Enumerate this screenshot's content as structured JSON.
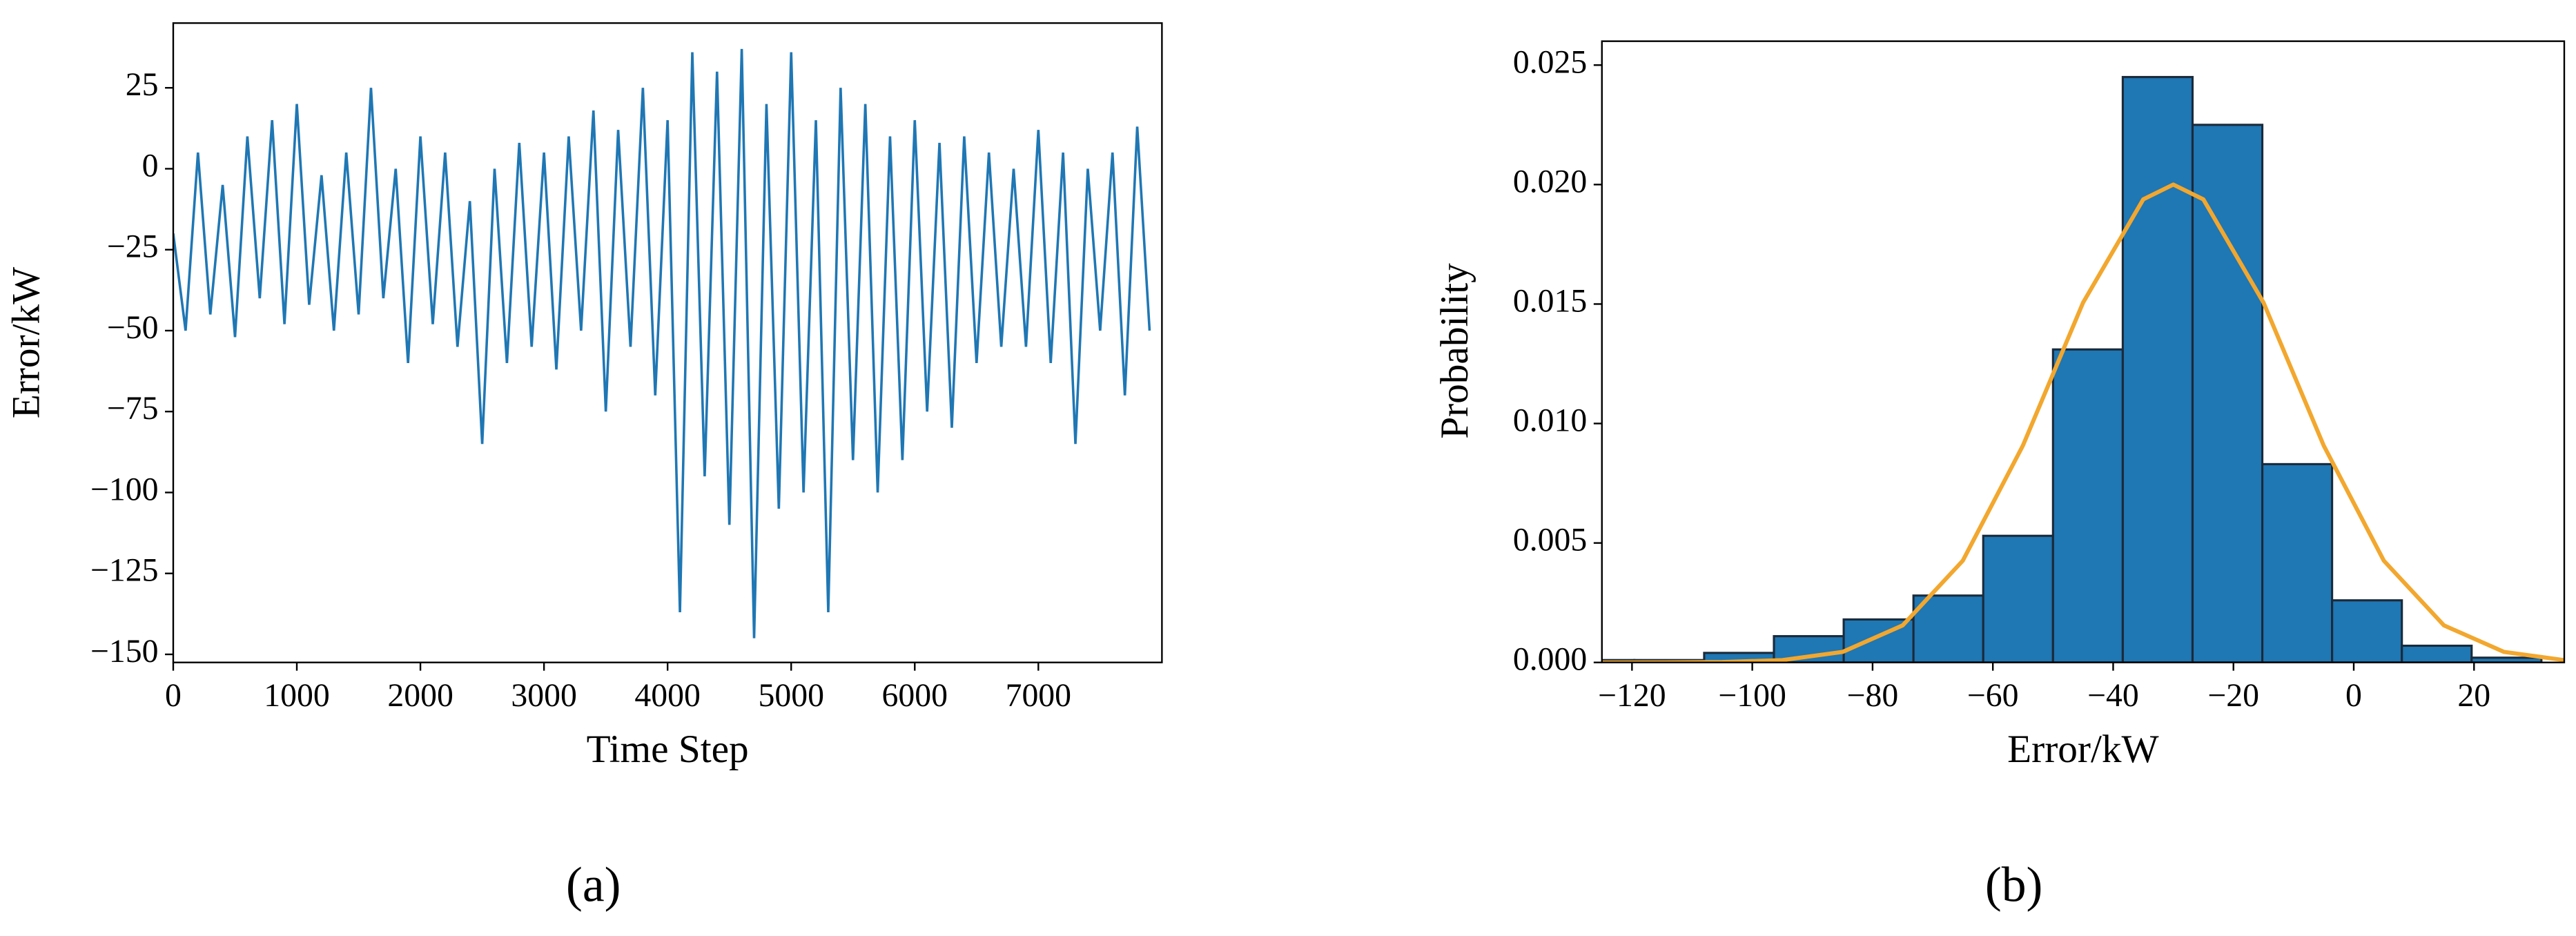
{
  "chart_data": [
    {
      "type": "line",
      "xlabel": "Time Step",
      "ylabel": "Error/kW",
      "caption": "(a)",
      "x": [
        0,
        100,
        200,
        300,
        400,
        500,
        600,
        700,
        800,
        900,
        1000,
        1100,
        1200,
        1300,
        1400,
        1500,
        1600,
        1700,
        1800,
        1900,
        2000,
        2100,
        2200,
        2300,
        2400,
        2500,
        2600,
        2700,
        2800,
        2900,
        3000,
        3100,
        3200,
        3300,
        3400,
        3500,
        3600,
        3700,
        3800,
        3900,
        4000,
        4100,
        4200,
        4300,
        4400,
        4500,
        4600,
        4700,
        4800,
        4900,
        5000,
        5100,
        5200,
        5300,
        5400,
        5500,
        5600,
        5700,
        5800,
        5900,
        6000,
        6100,
        6200,
        6300,
        6400,
        6500,
        6600,
        6700,
        6800,
        6900,
        7000,
        7100,
        7200,
        7300,
        7400,
        7500,
        7600,
        7700,
        7800,
        7900
      ],
      "series": [
        {
          "color": "#1f77b4",
          "values": [
            -20,
            -50,
            5,
            -45,
            -5,
            -52,
            10,
            -40,
            15,
            -48,
            20,
            -42,
            -2,
            -50,
            5,
            -45,
            25,
            -40,
            0,
            -60,
            10,
            -48,
            5,
            -55,
            -10,
            -85,
            0,
            -60,
            8,
            -55,
            5,
            -62,
            10,
            -50,
            18,
            -75,
            12,
            -55,
            25,
            -70,
            15,
            -137,
            36,
            -95,
            30,
            -110,
            37,
            -145,
            20,
            -105,
            36,
            -100,
            15,
            -137,
            25,
            -90,
            20,
            -100,
            10,
            -90,
            15,
            -75,
            8,
            -80,
            10,
            -60,
            5,
            -55,
            0,
            -55,
            12,
            -60,
            5,
            -85,
            0,
            -50,
            5,
            -70,
            13,
            -50
          ]
        }
      ],
      "xlim": [
        0,
        8000
      ],
      "xticks": [
        0,
        1000,
        2000,
        3000,
        4000,
        5000,
        6000,
        7000
      ],
      "ylim": [
        -152.5,
        45
      ],
      "yticks": [
        25,
        0,
        {
          "value": -25,
          "label": "−25"
        },
        {
          "value": -50,
          "label": "−50"
        },
        {
          "value": -75,
          "label": "−75"
        },
        {
          "value": -100,
          "label": "−100"
        },
        {
          "value": -125,
          "label": "−125"
        },
        {
          "value": -150,
          "label": "−150"
        }
      ]
    },
    {
      "type": "histogram",
      "xlabel": "Error/kW",
      "ylabel": "Probability",
      "caption": "(b)",
      "bins": [
        -131.2,
        -119.6,
        -108,
        -96.4,
        -84.8,
        -73.2,
        -61.6,
        -50,
        -38.4,
        -26.8,
        -15.2,
        -3.6,
        8,
        19.6,
        31.2
      ],
      "values": [
        0.0001,
        0.0001,
        0.0004,
        0.0011,
        0.0018,
        0.0028,
        0.0053,
        0.0131,
        0.0245,
        0.0225,
        0.0083,
        0.0026,
        0.0007,
        0.0002
      ],
      "color": "#1f77b4",
      "edgecolor": "#1a2a3a",
      "fit": {
        "color": "#f2a72e",
        "x": [
          -125,
          -115,
          -105,
          -95,
          -85,
          -75,
          -65,
          -55,
          -45,
          -35,
          -30,
          -25,
          -15,
          -5,
          5,
          15,
          25,
          35
        ],
        "values": [
          0,
          2.2e-06,
          1.64e-05,
          9.7e-05,
          0.00044,
          0.00155,
          0.00426,
          0.00908,
          0.01506,
          0.01938,
          0.02,
          0.01938,
          0.01506,
          0.00908,
          0.00426,
          0.00155,
          0.00044,
          9.7e-05
        ]
      },
      "xlim": [
        -125,
        35
      ],
      "xticks": [
        {
          "value": -120,
          "label": "−120"
        },
        {
          "value": -100,
          "label": "−100"
        },
        {
          "value": -80,
          "label": "−80"
        },
        {
          "value": -60,
          "label": "−60"
        },
        {
          "value": -40,
          "label": "−40"
        },
        {
          "value": -20,
          "label": "−20"
        },
        0,
        20
      ],
      "ylim": [
        0,
        0.026
      ],
      "yticks": [
        {
          "value": 0,
          "label": "0.000"
        },
        0.005,
        {
          "value": 0.01,
          "label": "0.010"
        },
        0.015,
        {
          "value": 0.02,
          "label": "0.020"
        },
        0.025
      ]
    }
  ]
}
